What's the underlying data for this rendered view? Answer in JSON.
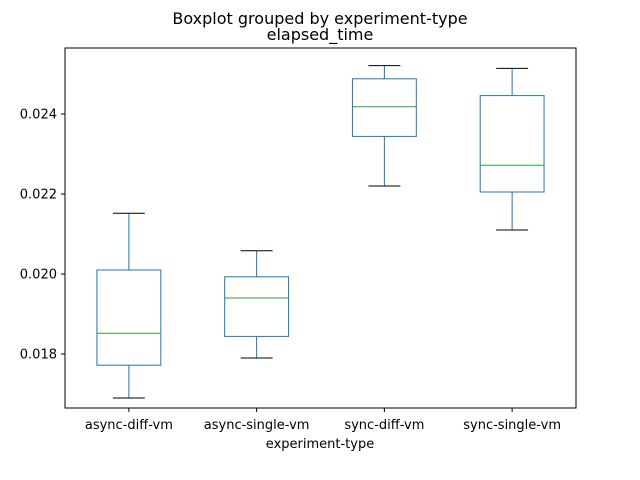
{
  "chart_data": {
    "type": "boxplot",
    "suptitle": "Boxplot grouped by experiment-type",
    "title": "elapsed_time",
    "xlabel": "experiment-type",
    "ylabel": "",
    "ylim": [
      0.01665,
      0.02565
    ],
    "yticks": [
      {
        "value": 0.018,
        "label": "0.018"
      },
      {
        "value": 0.02,
        "label": "0.020"
      },
      {
        "value": 0.022,
        "label": "0.022"
      },
      {
        "value": 0.024,
        "label": "0.024"
      }
    ],
    "grid": false,
    "colors": {
      "box": "#1f77b4",
      "median": "#2ca02c",
      "whisker": "#000000",
      "axes": "#000000"
    },
    "categories": [
      "async-diff-vm",
      "async-single-vm",
      "sync-diff-vm",
      "sync-single-vm"
    ],
    "boxes": [
      {
        "name": "async-diff-vm",
        "whislo": 0.0169,
        "q1": 0.01772,
        "med": 0.01852,
        "q3": 0.0201,
        "whishi": 0.02152
      },
      {
        "name": "async-single-vm",
        "whislo": 0.0179,
        "q1": 0.01844,
        "med": 0.0194,
        "q3": 0.01993,
        "whishi": 0.02058
      },
      {
        "name": "sync-diff-vm",
        "whislo": 0.0222,
        "q1": 0.02344,
        "med": 0.02418,
        "q3": 0.02488,
        "whishi": 0.02521
      },
      {
        "name": "sync-single-vm",
        "whislo": 0.0211,
        "q1": 0.02205,
        "med": 0.02272,
        "q3": 0.02446,
        "whishi": 0.02514
      }
    ]
  }
}
